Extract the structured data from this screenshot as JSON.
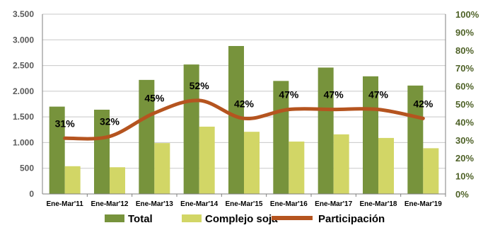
{
  "chart_data": {
    "type": "bar",
    "categories": [
      "Ene-Mar'11",
      "Ene-Mar'12",
      "Ene-Mar'13",
      "Ene-Mar'14",
      "Ene-Mar'15",
      "Ene-Mar'16",
      "Ene-Mar'17",
      "Ene-Mar'18",
      "Ene-Mar'19"
    ],
    "series": [
      {
        "name": "Total",
        "kind": "bar",
        "axis": "left",
        "color": "#77933c",
        "values": [
          1700,
          1640,
          2220,
          2520,
          2880,
          2200,
          2460,
          2290,
          2110
        ]
      },
      {
        "name": "Complejo soja",
        "kind": "bar",
        "axis": "left",
        "color": "#d2d666",
        "values": [
          540,
          520,
          990,
          1310,
          1210,
          1020,
          1160,
          1090,
          890
        ]
      },
      {
        "name": "Participación",
        "kind": "line",
        "axis": "right",
        "color": "#b5541f",
        "values": [
          31,
          32,
          45,
          52,
          42,
          47,
          47,
          47,
          42
        ],
        "labels": [
          "31%",
          "32%",
          "45%",
          "52%",
          "42%",
          "47%",
          "47%",
          "47%",
          "42%"
        ]
      }
    ],
    "y_left": {
      "ylim": [
        0,
        3500
      ],
      "ticks": [
        0,
        500,
        1000,
        1500,
        2000,
        2500,
        3000,
        3500
      ],
      "tick_labels": [
        "0",
        "500",
        "1.000",
        "1.500",
        "2.000",
        "2.500",
        "3.000",
        "3.500"
      ]
    },
    "y_right": {
      "ylim": [
        0,
        100
      ],
      "ticks": [
        0,
        10,
        20,
        30,
        40,
        50,
        60,
        70,
        80,
        90,
        100
      ],
      "tick_labels": [
        "0%",
        "10%",
        "20%",
        "30%",
        "40%",
        "50%",
        "60%",
        "70%",
        "80%",
        "90%",
        "100%"
      ]
    },
    "grid": true,
    "legend_position": "bottom"
  }
}
